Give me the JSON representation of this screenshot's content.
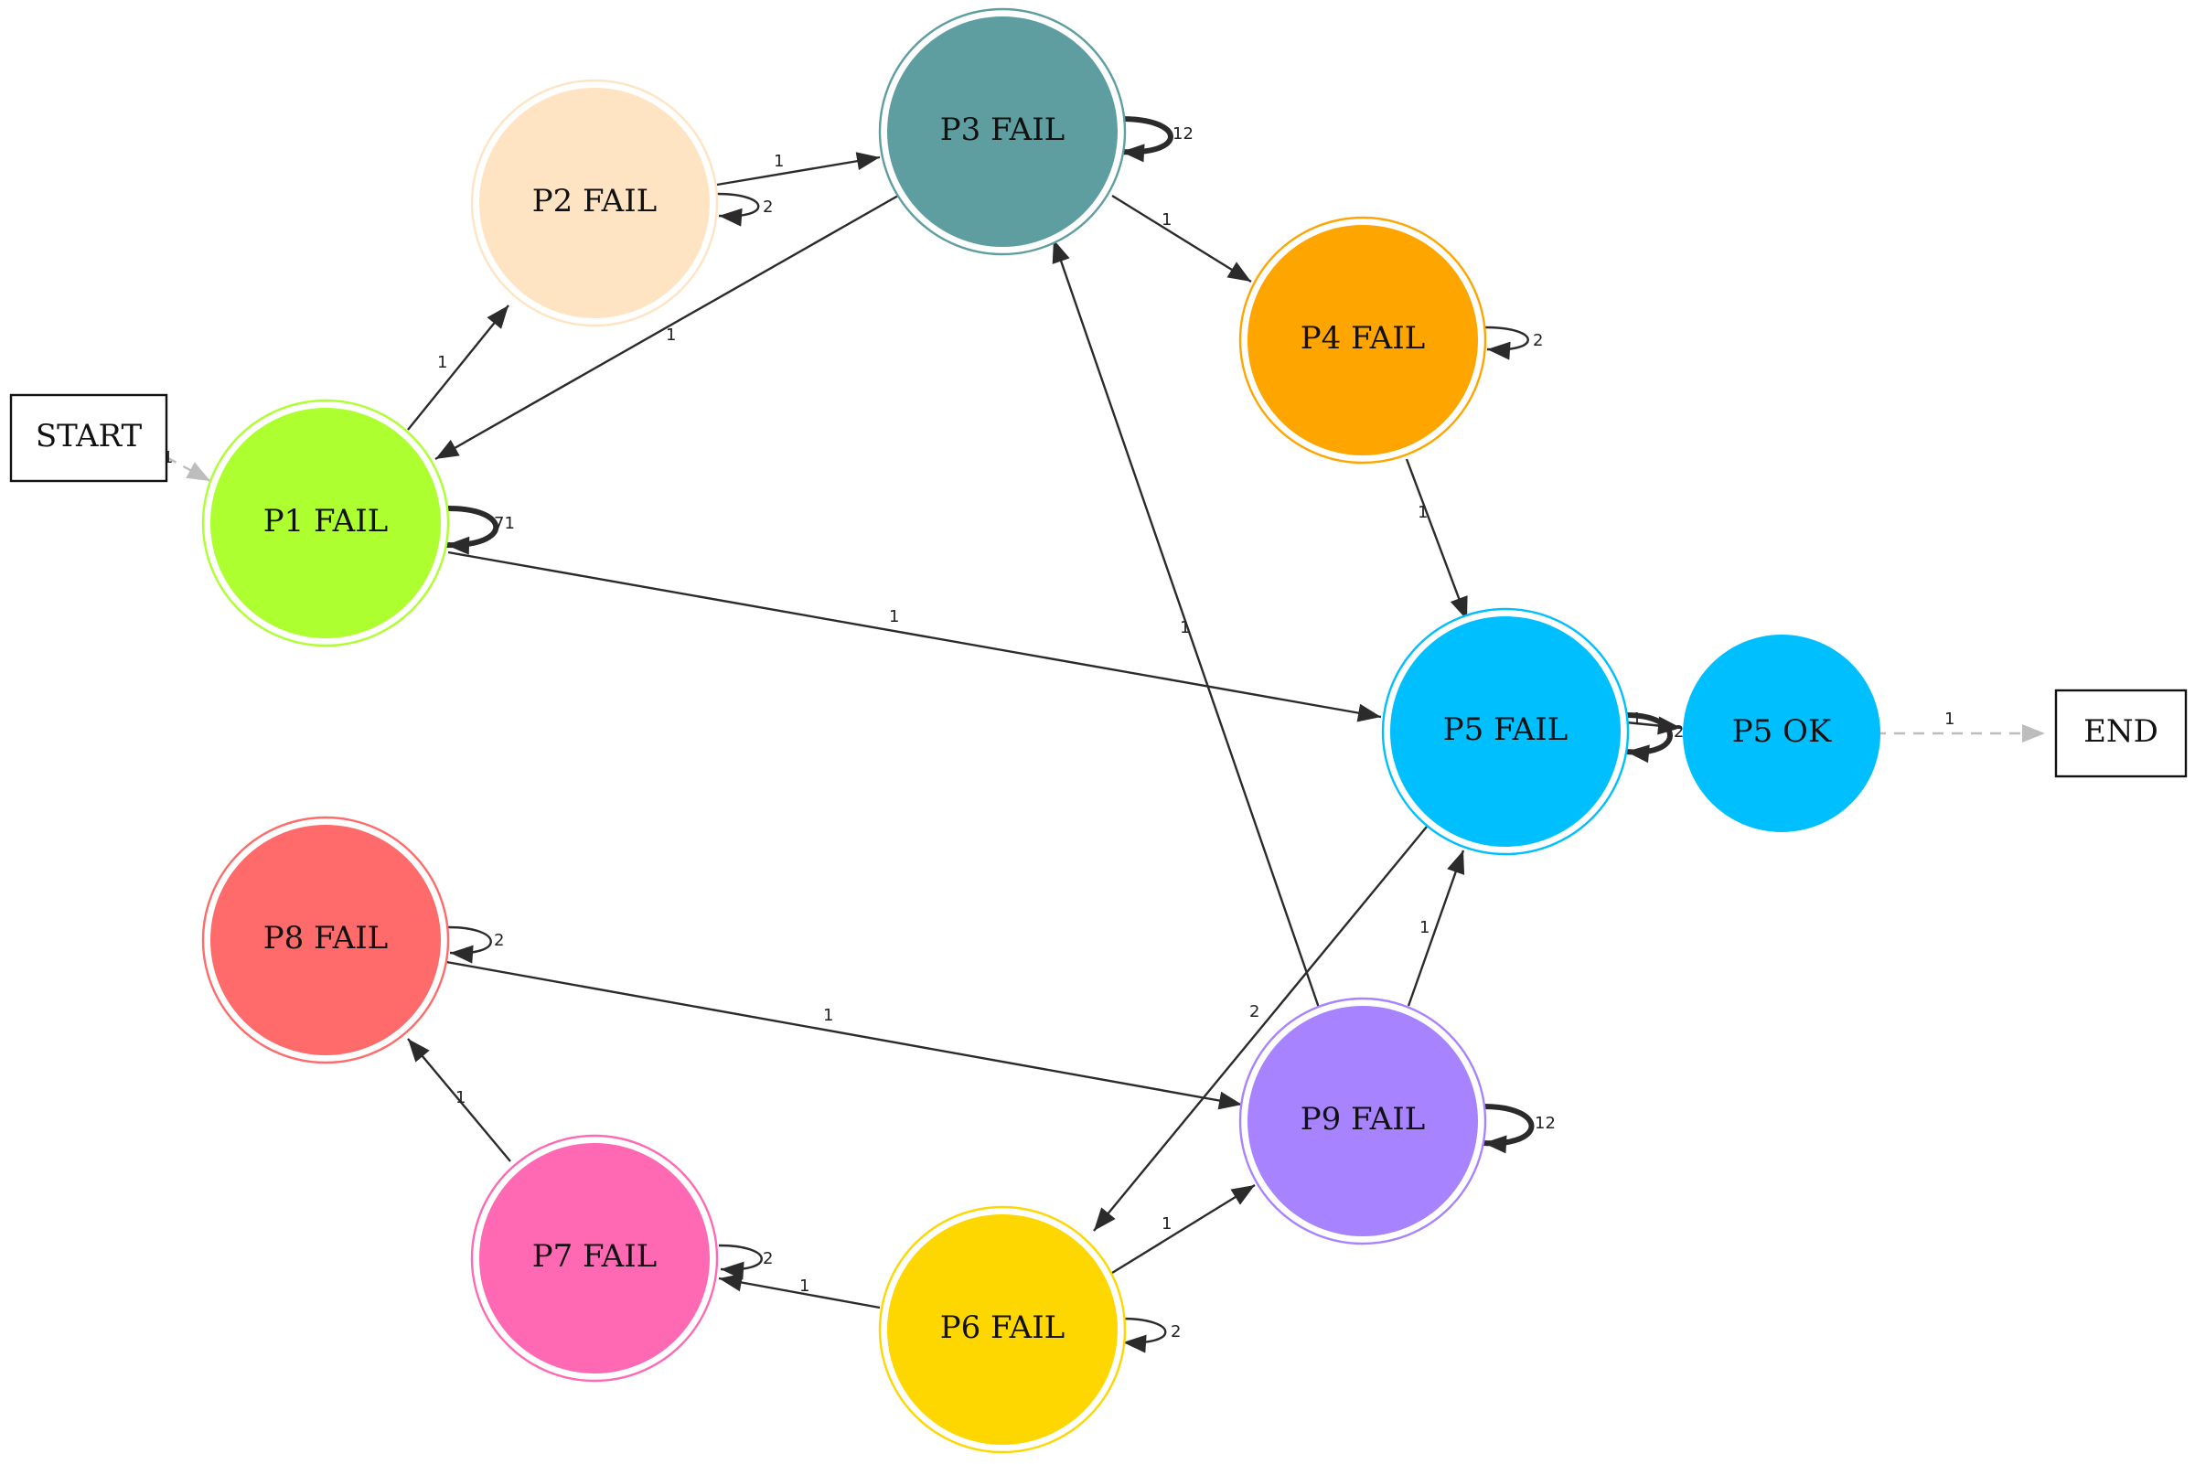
{
  "nodes": {
    "start": {
      "label": "START",
      "color": "#ffffff"
    },
    "end": {
      "label": "END",
      "color": "#ffffff"
    },
    "p1": {
      "label": "P1 FAIL",
      "color": "#adff2f"
    },
    "p2": {
      "label": "P2 FAIL",
      "color": "#ffe4c4"
    },
    "p3": {
      "label": "P3 FAIL",
      "color": "#5f9ea0"
    },
    "p4": {
      "label": "P4 FAIL",
      "color": "#ffa500"
    },
    "p5": {
      "label": "P5 FAIL",
      "color": "#00bfff"
    },
    "p5ok": {
      "label": "P5 OK",
      "color": "#00bfff"
    },
    "p6": {
      "label": "P6 FAIL",
      "color": "#ffd700"
    },
    "p7": {
      "label": "P7 FAIL",
      "color": "#ff69b4"
    },
    "p8": {
      "label": "P8 FAIL",
      "color": "#ff6a6a"
    },
    "p9": {
      "label": "P9 FAIL",
      "color": "#a883ff"
    }
  },
  "edges": {
    "start_p1": "1",
    "p1_p2": "1",
    "p1_self": "71",
    "p1_p5": "1",
    "p2_p3": "1",
    "p2_self": "2",
    "p3_self": "12",
    "p3_p4": "1",
    "p3_p1": "1",
    "p4_self": "2",
    "p4_p5": "1",
    "p5_p5ok": "1",
    "p5_self": "2",
    "p5_p6": "2",
    "p5ok_end": "1",
    "p6_self": "2",
    "p6_p7": "1",
    "p6_p9": "1",
    "p7_self": "2",
    "p7_p8": "1",
    "p8_self": "2",
    "p8_p9": "1",
    "p9_self": "12",
    "p9_p3": "1",
    "p9_p5": "1"
  }
}
